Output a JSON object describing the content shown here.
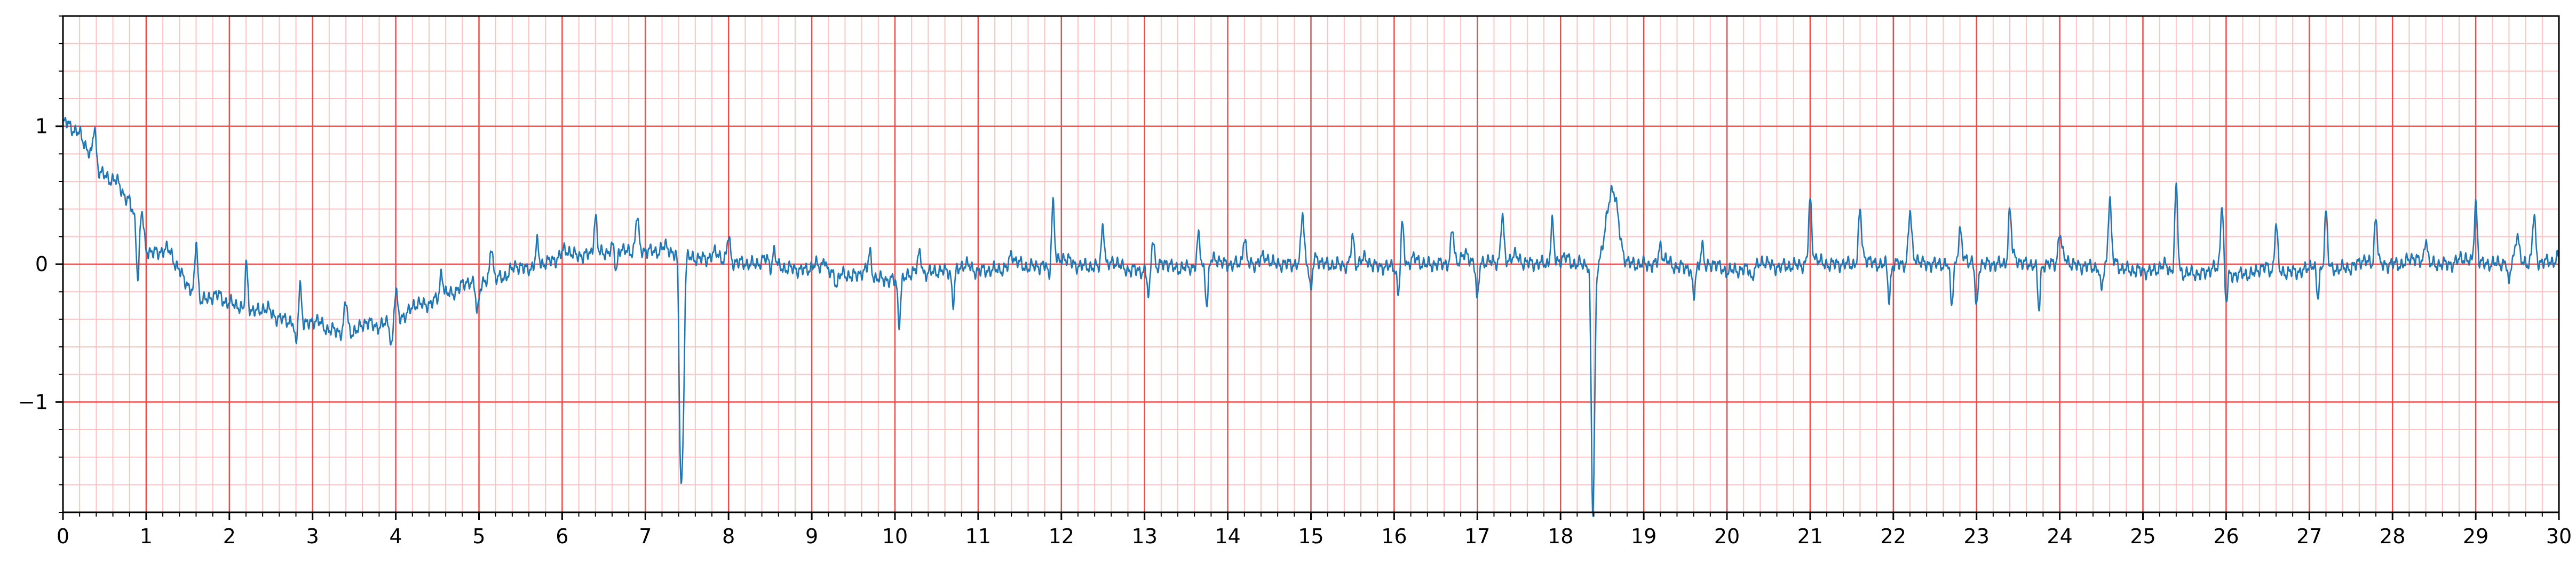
{
  "chart_data": {
    "type": "line",
    "title": "",
    "xlabel": "",
    "ylabel": "",
    "xlim": [
      0,
      30
    ],
    "ylim": [
      -1.8,
      1.8
    ],
    "grid": {
      "major_step_x": 1,
      "minor_step_x": 0.2,
      "major_step_y": 1,
      "minor_step_y": 0.2,
      "major_color": "#ef4b4b",
      "minor_color": "#ffc2c2"
    },
    "x_ticks": [
      0,
      1,
      2,
      3,
      4,
      5,
      6,
      7,
      8,
      9,
      10,
      11,
      12,
      13,
      14,
      15,
      16,
      17,
      18,
      19,
      20,
      21,
      22,
      23,
      24,
      25,
      26,
      27,
      28,
      29,
      30
    ],
    "x_tick_labels": [
      "0",
      "1",
      "2",
      "3",
      "4",
      "5",
      "6",
      "7",
      "8",
      "9",
      "10",
      "11",
      "12",
      "13",
      "14",
      "15",
      "16",
      "17",
      "18",
      "19",
      "20",
      "21",
      "22",
      "23",
      "24",
      "25",
      "26",
      "27",
      "28",
      "29",
      "30"
    ],
    "y_ticks": [
      -1,
      0,
      1
    ],
    "y_tick_labels": [
      "−1",
      "0",
      "1"
    ],
    "series": [
      {
        "color": "#1f77b4",
        "baseline_knots": [
          [
            0,
            0.98
          ],
          [
            0.2,
            0.95
          ],
          [
            0.4,
            0.7
          ],
          [
            0.6,
            0.58
          ],
          [
            0.8,
            0.45
          ],
          [
            1.0,
            0.1
          ],
          [
            1.3,
            0.05
          ],
          [
            1.6,
            -0.25
          ],
          [
            2.0,
            -0.28
          ],
          [
            2.5,
            -0.38
          ],
          [
            3.0,
            -0.45
          ],
          [
            3.4,
            -0.5
          ],
          [
            3.8,
            -0.45
          ],
          [
            4.0,
            -0.4
          ],
          [
            4.3,
            -0.32
          ],
          [
            4.6,
            -0.22
          ],
          [
            5.0,
            -0.15
          ],
          [
            5.5,
            -0.05
          ],
          [
            6.0,
            0.05
          ],
          [
            6.5,
            0.08
          ],
          [
            7.0,
            0.1
          ],
          [
            7.5,
            0.05
          ],
          [
            8.0,
            0.02
          ],
          [
            9.0,
            -0.05
          ],
          [
            10.0,
            -0.12
          ],
          [
            10.5,
            -0.05
          ],
          [
            11.0,
            -0.05
          ],
          [
            12.0,
            0.0
          ],
          [
            13.0,
            -0.05
          ],
          [
            14.0,
            0.0
          ],
          [
            15.0,
            0.0
          ],
          [
            16.0,
            -0.02
          ],
          [
            17.0,
            0.02
          ],
          [
            18.0,
            0.0
          ],
          [
            18.5,
            0.0
          ],
          [
            19.0,
            0.0
          ],
          [
            20.0,
            -0.05
          ],
          [
            21.0,
            0.0
          ],
          [
            22.0,
            0.0
          ],
          [
            23.0,
            0.0
          ],
          [
            24.0,
            0.0
          ],
          [
            25.0,
            -0.05
          ],
          [
            26.0,
            -0.08
          ],
          [
            27.0,
            -0.05
          ],
          [
            28.0,
            0.0
          ],
          [
            29.0,
            0.0
          ],
          [
            30.0,
            0.02
          ]
        ],
        "r_peaks": [
          [
            0.38,
            1.0
          ],
          [
            0.95,
            0.38
          ],
          [
            1.6,
            0.2
          ],
          [
            2.2,
            0.05
          ],
          [
            2.85,
            -0.15
          ],
          [
            3.4,
            -0.15
          ],
          [
            4.0,
            -0.2
          ],
          [
            4.55,
            -0.05
          ],
          [
            5.15,
            0.15
          ],
          [
            5.7,
            0.15
          ],
          [
            6.4,
            0.35
          ],
          [
            6.9,
            0.35
          ],
          [
            7.45,
            -1.15
          ],
          [
            8.0,
            0.2
          ],
          [
            8.55,
            0.1
          ],
          [
            9.15,
            0.05
          ],
          [
            9.7,
            0.05
          ],
          [
            10.3,
            0.05
          ],
          [
            10.85,
            -0.05
          ],
          [
            11.4,
            0.05
          ],
          [
            11.9,
            0.45
          ],
          [
            12.5,
            0.3
          ],
          [
            13.1,
            0.2
          ],
          [
            13.65,
            0.2
          ],
          [
            14.2,
            0.2
          ],
          [
            14.9,
            0.38
          ],
          [
            15.5,
            0.2
          ],
          [
            16.1,
            0.28
          ],
          [
            16.7,
            0.25
          ],
          [
            17.3,
            0.35
          ],
          [
            17.9,
            0.3
          ],
          [
            18.4,
            -1.07
          ],
          [
            19.2,
            0.1
          ],
          [
            19.7,
            0.15
          ],
          [
            20.3,
            0.15
          ],
          [
            21.0,
            0.42
          ],
          [
            21.6,
            0.35
          ],
          [
            22.2,
            0.35
          ],
          [
            22.8,
            0.2
          ],
          [
            23.4,
            0.35
          ],
          [
            24.0,
            0.2
          ],
          [
            24.6,
            0.45
          ],
          [
            25.4,
            0.55
          ],
          [
            25.95,
            0.45
          ],
          [
            26.6,
            0.3
          ],
          [
            27.2,
            0.38
          ],
          [
            27.8,
            0.35
          ],
          [
            28.4,
            0.2
          ],
          [
            29.0,
            0.45
          ],
          [
            29.5,
            0.2
          ],
          [
            29.7,
            0.35
          ]
        ],
        "s_troughs": [
          [
            0.9,
            -0.1
          ],
          [
            1.58,
            -0.3
          ],
          [
            2.18,
            -0.45
          ],
          [
            2.8,
            -0.6
          ],
          [
            3.4,
            -0.62
          ],
          [
            3.95,
            -0.6
          ],
          [
            4.98,
            -0.35
          ],
          [
            6.65,
            -0.1
          ],
          [
            7.42,
            -1.15
          ],
          [
            8.5,
            -0.05
          ],
          [
            9.3,
            -0.15
          ],
          [
            10.05,
            -0.42
          ],
          [
            10.7,
            -0.28
          ],
          [
            11.85,
            -0.1
          ],
          [
            13.05,
            -0.25
          ],
          [
            13.75,
            -0.3
          ],
          [
            15.0,
            -0.25
          ],
          [
            16.05,
            -0.22
          ],
          [
            17.0,
            -0.28
          ],
          [
            18.38,
            -1.07
          ],
          [
            19.6,
            -0.25
          ],
          [
            20.3,
            -0.3
          ],
          [
            21.95,
            -0.25
          ],
          [
            22.7,
            -0.3
          ],
          [
            23.0,
            -0.33
          ],
          [
            23.75,
            -0.33
          ],
          [
            24.5,
            -0.2
          ],
          [
            26.0,
            -0.28
          ],
          [
            27.1,
            -0.28
          ],
          [
            29.4,
            -0.2
          ]
        ],
        "t_wave": {
          "center": 18.62,
          "width": 0.14,
          "peak": 0.5
        }
      }
    ]
  }
}
